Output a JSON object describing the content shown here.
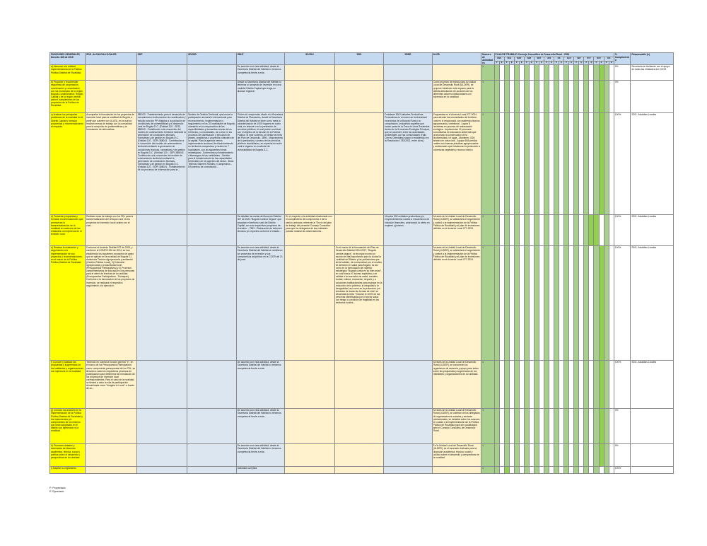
{
  "headers": {
    "funciones": "FUNCIONES GENERALES Decreto 165 de 2019",
    "sdg": "SDG -ALCALDIA LOCALES",
    "sdp": "SDP",
    "sdcrd": "SDCRD",
    "sdht": "SDHT",
    "sdyfu": "SDYDU",
    "sds": "SDS",
    "sdde": "SDDE",
    "alcb": "ALCB",
    "numero": "Número de Actividades",
    "plan_title": "PLAN DE TRABAJO Consejo Consultivo de Desarrollo Rural - 2024",
    "months": [
      "ENE",
      "FEB",
      "MAR",
      "ABR",
      "MAY",
      "JUN",
      "JUL",
      "AGO",
      "SEP",
      "OCT",
      "NOV",
      "DIC"
    ],
    "pe": [
      "P",
      "E"
    ],
    "cumplimiento": "% Cumplimiento",
    "responsable": "Responsable (s)"
  },
  "rows": [
    {
      "funcion": "a) Asesorar a la entidad implementadora de la Política Pública Distrital de Ruralidad.",
      "sdg": "",
      "sdp": "",
      "sdcrd": "",
      "sdht": "De acuerdo con esta actividad, desde la Secretaría Distrital del Hábitat no tenemos competencia frente a esta.",
      "sdyfu": "",
      "sds": "",
      "sdde": "",
      "alcb": "",
      "num": "1",
      "pct": "0%",
      "resp": "Secretaría de Ambiente con el apoyo de todas las entidades del CCDR."
    },
    {
      "funcion": "b) Proponer y recomendar esquemas de cooperación, coordinación y concertación con los municipios de la región Bogotá-Cundinamarca, Región-Capital y de la región central para el cumplimiento de los propósitos de la Política de Ruralidad.",
      "sdg": "",
      "sdp": "",
      "sdcrd": "",
      "sdht": "Desde la Secretaría Distrital del Hábitat no tenemos un proyecto de inversión en zona ruralidel Distrito Capital que tenga un alcance regional.",
      "sdyfu": "",
      "sds": "",
      "sdde": "",
      "alcb": "Como proyecto de trabajo para la Unidad Local de Desarrollo Rural (ULDER), se propone fortalecer este espacio para la debida articulación de acciones de los diferentes actores institucionales con injerencia en la ruralidad.",
      "num": "1",
      "pct": "0%",
      "resp": ""
    },
    {
      "funcion": "c) Analizar los principales problemas de la ruralidad en el Distrito Capital y formular propuestas y recomendaciones al respecto.",
      "sdg": "Acompañar la formulación de los proyectos de inversión local para la ruralidad de Bogotá, a partir que cuenten con ULATA, en la cual se realizan mesas de trabajo con la comunidad para la recepción de problemáticas y la formulación de alternativas.",
      "sdp": "388133 - Fortalecimiento para el desarrollo de mecanismos e instrumentos de coordinación y estudio para los PP dirigidos a la población en condiciones de vulnerabilidad y el desarrollo rural de Bogotá D.C. (Entidad 120 - SDP) 388043 - Contribución a la concreción del modelo de ordenamiento territorial mediante la generación de condiciones técnicas, normativas y de gestión en Bogotá D.C. (Entidad 120 - SDP) 388043 - Contribución a la concreción del modelo de ordenamiento territorial mediante la generación de condiciones técnicas, normativas y de gestión en Bogotá D.C. (Entidad 120 - SDP) 388043 - Contribución a la concreción del modelo de ordenamiento territorial mediante la generación de condiciones técnicas, normativas y de gestión en Bogotá D.C. (Entidad 120 - SDP) 388024 - Fortalecimiento de los procesos de información para la ...",
      "sdcrd": "Modelo de Gestión Territorial, que busca la participación sectorial e intersectorial para reconocimiento, implementación y seguimiento en los 20 localidades de Bogotá, orientado en la comprensión de las especificidades y demandas únicas de los territorios y comunidades, así como en los procesos de planificación y ejecución de planes, programas o proyectos culturales de la capital. Para la agencia hemos implementado acciones de relacionamiento en territorios campesinos y rurales en 7 localidades, con las siguientes líneas estratégicas: -Gobernanza y fortalecimiento a liderazgos de las ruralidades. -Gestión para el fortalecimiento de las capacidades territoriales de los agentes del sector. -Beca Tejiendo Saberes Rurales y Campesinos - Encuentros de connotación...",
      "sdht": "Si bien el compromiso citado a la Secretaría Distrital de Planeación, desde la Secretaría Distrital del Hábitat se tiene como meta la caracterización de 1000 hogares en suelo rural, en relación con la prestación de servicios públicos, el cual puede contribuir con el objetivo de la función de la Política Pública. Si este contexto, se desde la meta del Plan de Desarrollo, 3895 - Mejoramiento de la prestación y acceso de los servicios públicos domiciliarios, en especial en suelo rural a hogares en condición de vulnerabilidad de Bogotá D.C.",
      "sdyfu": "",
      "sds": "",
      "sdde": "Fortalecer 800 Unidades Productivas Productivas en el marco de la diversidad económica de la Bogotá Rural y su conspiración, incluyendo aquellas que hacen parte de la Zona de Usos Sostenible dentro de la 5 reservas Ecológica Principal, que se acuerden entre las autoridades ambientales con las comunidades (Fallo Cerros Orientales) según lo establecido en la Resolución 1783/2021, entre otros).",
      "alcb": "Propuestas en el Acuerdo Local 077-2024 para atender las necesidades del territorio rural en lo relacionado con asistencia técnica agropecuaria y ambiental: -Lograr 8 hectáreas en proceso de restauración ecológica. -Implementar 12 procesos comunitarios de educación ambiental que promuevan la conservación de la biodiversidad y el agua. -Mantener 1300 árboles en zona rural. -Apoyar 846 predios rurales con buenas prácticas agropecuarias y ambientales que fortalezcan la protección a coberturas vegetales y recurso hídrico.",
      "num": "1",
      "pct": "100%",
      "resp": "SDG -Alcaldías Locales"
    },
    {
      "funcion": "d) Presentar propuestas y formular recomendaciones que promuevan la transversalización de la ruralidad en cada una de las entidades con injerencia en el territorio rural.",
      "sdg": "Realizar mesa de trabajo con los FDL para la transversalización del enfoque rural en los proyectos de inversión local rurales con el cual...",
      "sdp": "",
      "sdcrd": "",
      "sdht": "Se detallan las metas del Acuerdo Distrital 927 de 2024 \"Bogotá Camina Segura\" que impactan el territorio rural del Distrito Capital, con sus respectivos proyectos de inversión. - 7983 - Elaboración de informes técnicos y/o reportes conforme el estado...",
      "sdyfu": "En el respecto a la actividad relacionada con el cumplimiento del compromiso 4 de la sesión ordinaria, referente al \"Envío del plan de trabajo del presente Consejo Consultivo para que los delegados de las entidades puedan realizar las observaciones...",
      "sds": "",
      "sdde": "Vincular 300 unidades productivas y/o emprendimientos rurales a mecanismos de inclusión financiera, priorizando la oferta en mujeres y jóvenes.",
      "alcb": "A través de la Unidad Local de Desarrollo Rural (ULDER), se adelantará el seguimiento y control a la implementación de la Política Pública de Ruralidad y al plan de inversiones definido en el Acuerdo Local 077-2024.",
      "num": "1",
      "pct": "100%",
      "resp": "SDG -Alcaldías Locales"
    },
    {
      "funcion": "e) Realizar la evaluación y seguimiento a la implementación de sus proyectos y recomendaciones, en el marco de la Política Pública Distrital de Ruralidad.",
      "sdg": "Conforme al Acuerdo Distrital 927 de 2024, y conforme al CONFIS 006 de 2024, se han establecido los siguientes conceptos de gasto que se aplican en la ruralidad de Bogotá: 1) Asistencia Técnica Agropecuaria y ambiental (Gestión Pública Local), 2) Extensión agropecuaria y productividad rural (Presupuestos Participativos) y 3) Procesos complementarios de educación a los personas para el cierre de brechas de la ruralidad (Presupuestos Participativos - Sumapaz). Conforme a la formulación de los proyectos de inversión, se realizará el respectivo seguimiento a la ejecución.",
      "sdp": "",
      "sdcrd": "",
      "sdht": "De acuerdo con esta actividad, desde la Secretaría Distrital del Hábitat se remitieron los proyectos de inversión y sus compromisos adquiridos en la CCDR del 21 de junio.",
      "sdyfu": "",
      "sds": "En el marco de la formulación del Plan de Desarrollo Distrital 2024-2027, \"Bogotá camina segura\", se incorpora como un asunto de vital importancia para la ciudad la ruralidad del Distrito y las poblaciones que allí la habitan, de conformidad con el modelo de atención en salud para Bogotá, es así como en la formulación del objetivo estratégico \"Bogotá confía en su bien-estar\", en cual busca el \"acceso equitativo y de calidad a los servicios de salud, sociales, ciudad, cultura, recreación, deporte y a soluciones habitacionales para avanzar en la reducción de la pobreza, la inequidad y la desigualdad, así como en la protección y el bienestar de todas las formas de vida\" se desarrolla la meta \"Vincular el 100% de las personas identificadas por el sector salud con riesgo o condición de fragilidad en los territorios rurales...",
      "sdde": "",
      "alcb": "A través de la Unidad Local de Desarrollo Rural (ULDER), se adelantará el seguimiento y control a la implementación de la Política Pública de Ruralidad y al plan de inversiones definido en el Acuerdo Local 077-2024.",
      "num": "1",
      "pct": "100%",
      "resp": "SDG -Alcaldías Locales"
    },
    {
      "funcion": "f) Conocer y analizar las propuestas y sugerencias de los habitantes y organizaciones con injerencia en la ruralidad.",
      "sdg": "Teniendo en cuenta la función general \"e\", en el marco de los Presupuestos Participativos como componente presupuestal de los FDL, se llevarán a cabo los respectivos procesos de participación para determinar la formulación de los proyectos de inversión local correspondientes. Para el caso de la ruralidad, se llevará a cabo la ruta de participación denominada como \"Imagina lo Local\", a través de un...",
      "sdp": "",
      "sdcrd": "",
      "sdht": "De acuerdo con esta actividad, desde la Secretaría Distrital del Hábitat no tenemos competencia frente a esta.",
      "sdyfu": "",
      "sds": "",
      "sdde": "",
      "alcb": "A través de la Unidad Local de Desarrollo Rural (ULDER), se conocerán los organismos de asesoría y apoyo para todos sobre las propuestas y sugerencias de los habitantes y organizaciones de la ruralidad.",
      "num": "1",
      "pct": "100%",
      "resp": "SDG -Alcaldías Locales"
    },
    {
      "funcion": "g) Conocer los avances en la implementación de la Política Pública Distrital de Ruralidad y los instrumentos y/o componentes de los mismos que sean adoptados en el distrito con injerencia en la ruralidad.",
      "sdg": "",
      "sdp": "",
      "sdcrd": "",
      "sdht": "De acuerdo con esta actividad, desde la Secretaría Distrital del Hábitat no tenemos competencia frente a esta.",
      "sdyfu": "",
      "sds": "",
      "sdde": "",
      "alcb": "A través de la Unidad Local de Desarrollo Rural (ULDER), se cubrirán de los delegados de organizaciones sociales y sectores poblacionales, se debatirá sobre los avances en cuanto a la implementación de la Política Pública de Ruralidad para ser socializados ante el Consejo Consultivo de Desarrollo Rural.",
      "num": "1",
      "pct": "0%",
      "resp": ""
    },
    {
      "funcion": "h) Promover debates y escenarios de discusión académica, técnica, social y política sobre el desarrollo y perspectivas de la ruralidad.",
      "sdg": "",
      "sdp": "",
      "sdcrd": "",
      "sdht": "De acuerdo con esta actividad, desde la Secretaría Distrital del Hábitat no tenemos competencia frente a esta.",
      "sdyfu": "",
      "sds": "",
      "sdde": "",
      "alcb": "En la Unidad Local de Desarrollo Rural (ULDER), es el escenario indicado para la discusión académica, técnica, social y política sobre el desarrollo y perspectivas de la ruralidad.",
      "num": "1",
      "pct": "0%",
      "resp": ""
    },
    {
      "funcion": "i) Adoptar su reglamento",
      "sdg": "",
      "sdp": "",
      "sdcrd": "",
      "sdht": "Actividad cumplida",
      "sdyfu": "",
      "sds": "",
      "sdde": "",
      "alcb": "",
      "num": "1",
      "pct": "100%",
      "resp": ""
    }
  ],
  "legend": {
    "p": "P: Proyectado",
    "e": "E: Ejecutado"
  }
}
